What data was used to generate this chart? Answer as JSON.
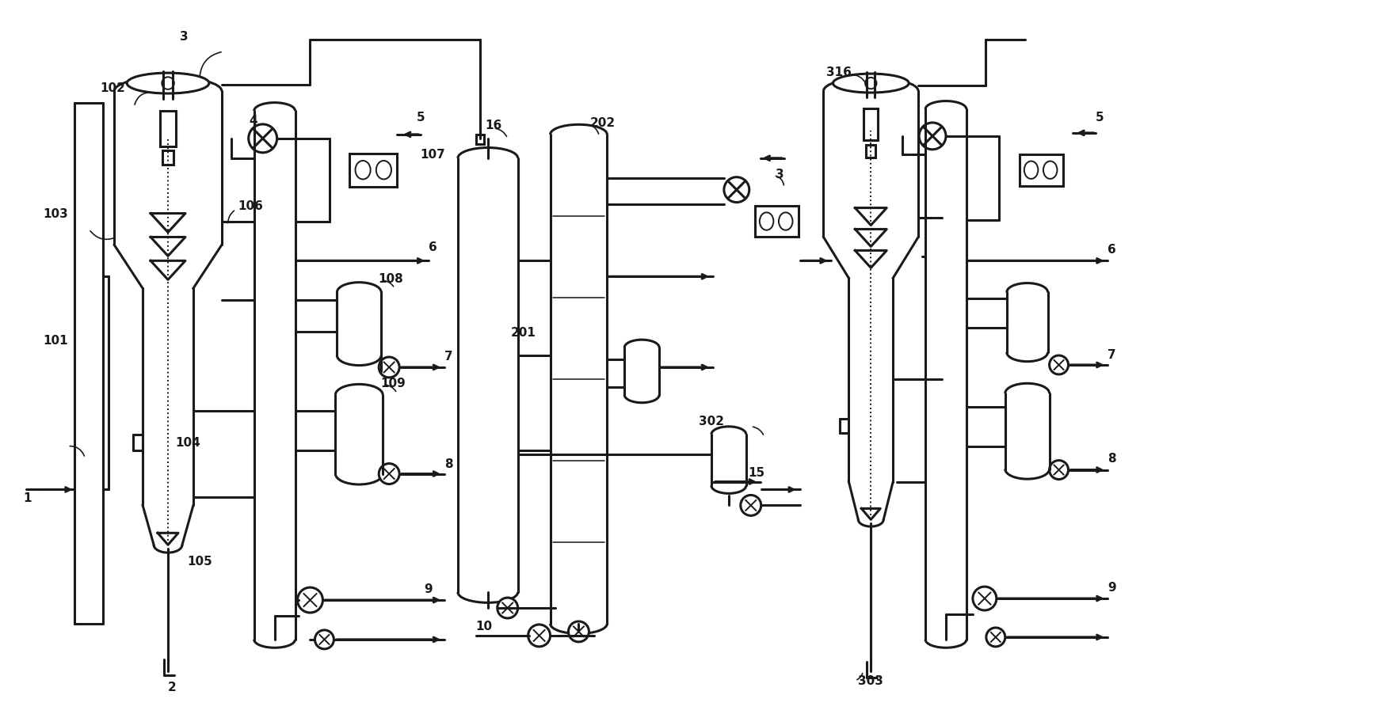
{
  "bg_color": "#ffffff",
  "line_color": "#1a1a1a",
  "lw": 2.2,
  "lw_thin": 1.4,
  "fig_width": 17.47,
  "fig_height": 9.03
}
